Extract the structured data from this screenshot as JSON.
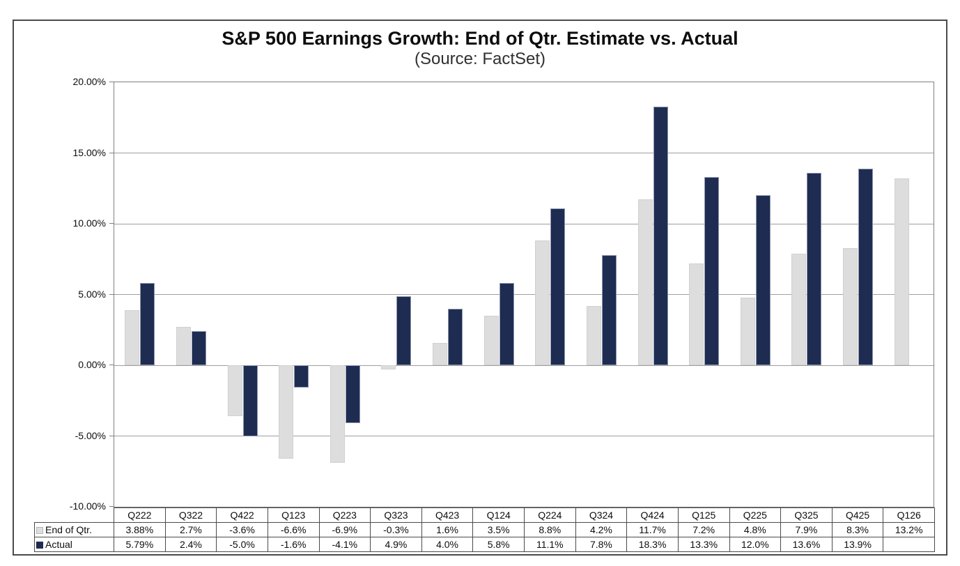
{
  "chart_data": {
    "type": "bar",
    "title": "S&P 500 Earnings Growth: End of Qtr. Estimate vs. Actual",
    "subtitle": "(Source: FactSet)",
    "categories": [
      "Q222",
      "Q322",
      "Q422",
      "Q123",
      "Q223",
      "Q323",
      "Q423",
      "Q124",
      "Q224",
      "Q324",
      "Q424",
      "Q125",
      "Q225",
      "Q325",
      "Q425",
      "Q126"
    ],
    "series": [
      {
        "key": "end-of-qtr",
        "name": "End of Qtr.",
        "color": "#dddddd",
        "border_color": "#d0d0d0",
        "values": [
          3.88,
          2.7,
          -3.6,
          -6.6,
          -6.9,
          -0.3,
          1.6,
          3.5,
          8.8,
          4.2,
          11.7,
          7.2,
          4.8,
          7.9,
          8.3,
          13.2
        ],
        "labels": [
          "3.88%",
          "2.7%",
          "-3.6%",
          "-6.6%",
          "-6.9%",
          "-0.3%",
          "1.6%",
          "3.5%",
          "8.8%",
          "4.2%",
          "11.7%",
          "7.2%",
          "4.8%",
          "7.9%",
          "8.3%",
          "13.2%"
        ]
      },
      {
        "key": "actual",
        "name": "Actual",
        "color": "#1f2c52",
        "border_color": "#8d97b0",
        "values": [
          5.79,
          2.4,
          -5.0,
          -1.6,
          -4.1,
          4.9,
          4.0,
          5.8,
          11.1,
          7.8,
          18.3,
          13.3,
          12.0,
          13.6,
          13.9,
          null
        ],
        "labels": [
          "5.79%",
          "2.4%",
          "-5.0%",
          "-1.6%",
          "-4.1%",
          "4.9%",
          "4.0%",
          "5.8%",
          "11.1%",
          "7.8%",
          "18.3%",
          "13.3%",
          "12.0%",
          "13.6%",
          "13.9%",
          ""
        ]
      }
    ],
    "ylim": [
      -10,
      20
    ],
    "ytick_step": 5,
    "ytick_labels": [
      "20.00%",
      "15.00%",
      "10.00%",
      "5.00%",
      "0.00%",
      "-5.00%",
      "-10.00%"
    ],
    "grid": true,
    "legend_position": "table-left",
    "colors": {
      "gridline": "#9e9e9e",
      "axis": "#808080",
      "table_border": "#4a4a4a",
      "figure_border": "#4a4a4a",
      "title_text": "#0d0d0d",
      "subtitle_text": "#303030"
    }
  }
}
